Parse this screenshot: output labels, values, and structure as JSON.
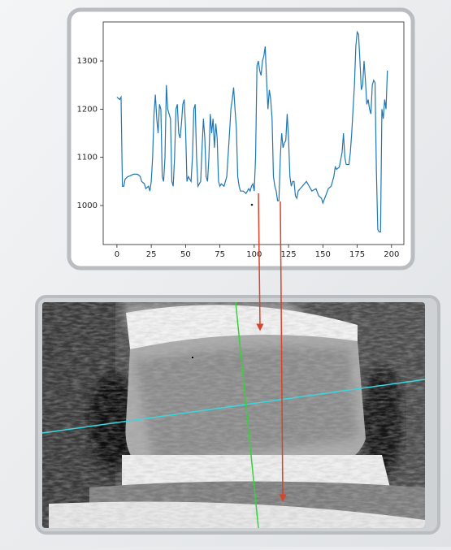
{
  "chart_data": {
    "type": "line",
    "color": "#1f77b4",
    "x": [
      0,
      2,
      3,
      4,
      5,
      6,
      8,
      10,
      12,
      15,
      17,
      18,
      20,
      21,
      23,
      24,
      25,
      26,
      27,
      28,
      29,
      30,
      31,
      32,
      33,
      34,
      35,
      36,
      37,
      38,
      39,
      40,
      41,
      42,
      43,
      44,
      45,
      46,
      47,
      48,
      49,
      50,
      51,
      52,
      54,
      55,
      56,
      57,
      58,
      59,
      61,
      62,
      63,
      64,
      65,
      66,
      67,
      68,
      69,
      70,
      71,
      72,
      73,
      74,
      75,
      76,
      78,
      80,
      82,
      83,
      84,
      85,
      86,
      87,
      88,
      89,
      90,
      92,
      94,
      96,
      97,
      98,
      99,
      100,
      101,
      102,
      103,
      104,
      105,
      106,
      107,
      108,
      109,
      110,
      111,
      112,
      113,
      114,
      115,
      116,
      117,
      118,
      119,
      120,
      121,
      122,
      123,
      124,
      125,
      126,
      127,
      128,
      129,
      130,
      131,
      132,
      135,
      138,
      140,
      142,
      145,
      147,
      149,
      150,
      152,
      154,
      156,
      158,
      159,
      160,
      162,
      164,
      165,
      166,
      167,
      169,
      170,
      171,
      172,
      173,
      174,
      175,
      176,
      177,
      178,
      179,
      180,
      181,
      182,
      183,
      184,
      185,
      186,
      187,
      188,
      189,
      190,
      191,
      192,
      193,
      194,
      195,
      196,
      197
    ],
    "values": [
      1225,
      1220,
      1225,
      1040,
      1040,
      1055,
      1060,
      1062,
      1065,
      1065,
      1060,
      1050,
      1045,
      1035,
      1040,
      1030,
      1050,
      1100,
      1190,
      1230,
      1180,
      1150,
      1210,
      1200,
      1060,
      1050,
      1100,
      1250,
      1200,
      1190,
      1180,
      1050,
      1040,
      1100,
      1200,
      1210,
      1150,
      1140,
      1170,
      1210,
      1220,
      1160,
      1050,
      1060,
      1050,
      1100,
      1200,
      1210,
      1100,
      1040,
      1050,
      1120,
      1180,
      1140,
      1060,
      1050,
      1100,
      1190,
      1150,
      1180,
      1120,
      1170,
      1140,
      1050,
      1040,
      1045,
      1040,
      1060,
      1150,
      1200,
      1220,
      1245,
      1200,
      1160,
      1060,
      1040,
      1030,
      1030,
      1025,
      1035,
      1030,
      1040,
      1045,
      1030,
      1100,
      1290,
      1300,
      1280,
      1270,
      1300,
      1310,
      1330,
      1260,
      1200,
      1240,
      1220,
      1180,
      1060,
      1040,
      1030,
      1010,
      1010,
      1100,
      1150,
      1120,
      1130,
      1135,
      1190,
      1140,
      1060,
      1040,
      1050,
      1050,
      1020,
      1015,
      1030,
      1040,
      1050,
      1040,
      1030,
      1035,
      1020,
      1015,
      1005,
      1020,
      1035,
      1040,
      1060,
      1080,
      1075,
      1080,
      1110,
      1150,
      1100,
      1085,
      1085,
      1110,
      1150,
      1200,
      1250,
      1330,
      1360,
      1355,
      1300,
      1240,
      1250,
      1300,
      1260,
      1210,
      1220,
      1200,
      1190,
      1250,
      1260,
      1255,
      1070,
      950,
      945,
      945,
      1200,
      1180,
      1220,
      1200,
      1280
    ],
    "xlim": [
      -10,
      209
    ],
    "xticks": [
      0,
      25,
      50,
      75,
      100,
      125,
      150,
      175,
      200
    ],
    "ylim": [
      919,
      1381
    ],
    "yticks": [
      1000,
      1100,
      1200,
      1300
    ]
  }
}
